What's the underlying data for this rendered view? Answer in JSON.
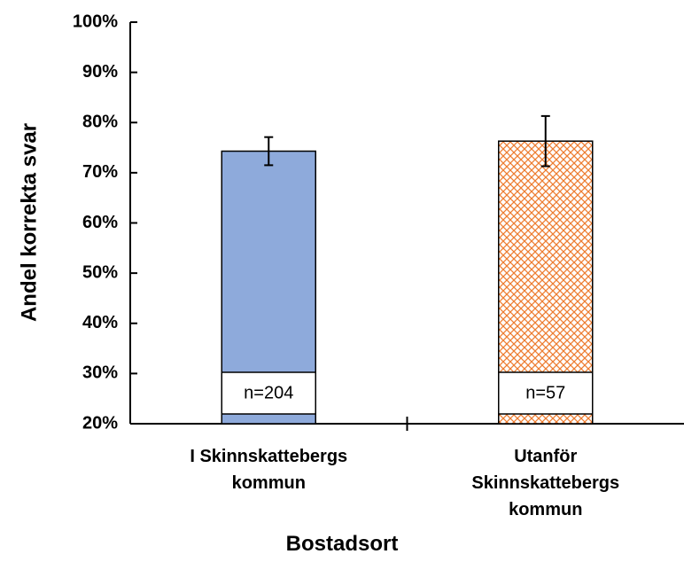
{
  "chart_data": {
    "type": "bar",
    "x_label": "Bostadsort",
    "y_label": "Andel korrekta svar",
    "categories": [
      "I Skinnskattebergs kommun",
      "Utanför Skinnskattebergs kommun"
    ],
    "values": [
      74.3,
      76.3
    ],
    "errors": [
      2.8,
      5.0
    ],
    "colors": [
      "#8eaadb",
      "#ed7d31"
    ],
    "patterns": [
      "solid",
      "crosshatch"
    ],
    "annotations": [
      "n=204",
      "n=57"
    ],
    "ylim": [
      20,
      100
    ],
    "yticks": [
      {
        "value": 20,
        "label": "20%"
      },
      {
        "value": 30,
        "label": "30%"
      },
      {
        "value": 40,
        "label": "40%"
      },
      {
        "value": 50,
        "label": "50%"
      },
      {
        "value": 60,
        "label": "60%"
      },
      {
        "value": 70,
        "label": "70%"
      },
      {
        "value": 80,
        "label": "80%"
      },
      {
        "value": 90,
        "label": "90%"
      },
      {
        "value": 100,
        "label": "100%"
      }
    ],
    "grid": false
  }
}
